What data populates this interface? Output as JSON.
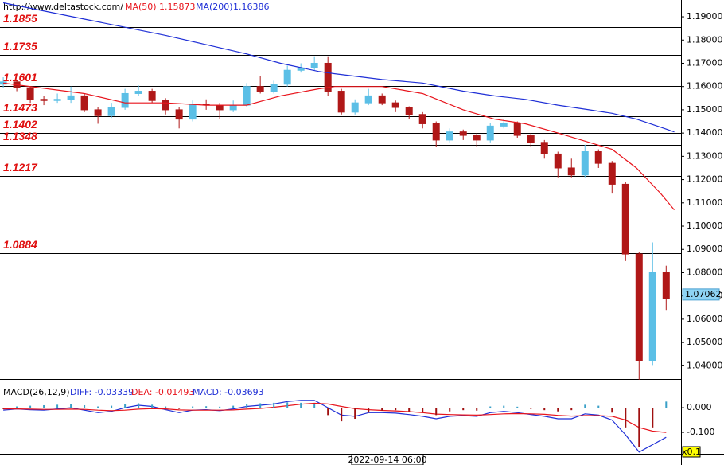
{
  "chart_data": [
    {
      "type": "candlestick",
      "source": "http://www.deltastock.com/",
      "open": [
        1.161,
        1.162,
        1.1595,
        1.1545,
        1.154,
        1.1545,
        1.156,
        1.15,
        1.1475,
        1.151,
        1.157,
        1.158,
        1.154,
        1.15,
        1.146,
        1.1525,
        1.152,
        1.15,
        1.152,
        1.16,
        1.158,
        1.161,
        1.167,
        1.168,
        1.17,
        1.158,
        1.149,
        1.153,
        1.156,
        1.153,
        1.151,
        1.148,
        1.144,
        1.137,
        1.1405,
        1.139,
        1.137,
        1.143,
        1.144,
        1.139,
        1.136,
        1.131,
        1.125,
        1.122,
        1.132,
        1.127,
        1.118,
        1.088,
        1.042,
        1.08
      ],
      "high": [
        1.164,
        1.163,
        1.16,
        1.156,
        1.157,
        1.16,
        1.157,
        1.151,
        1.153,
        1.159,
        1.1605,
        1.159,
        1.155,
        1.151,
        1.154,
        1.1545,
        1.153,
        1.154,
        1.1615,
        1.1645,
        1.1625,
        1.169,
        1.17,
        1.173,
        1.173,
        1.159,
        1.1545,
        1.159,
        1.157,
        1.154,
        1.1515,
        1.149,
        1.145,
        1.142,
        1.1415,
        1.14,
        1.1445,
        1.146,
        1.145,
        1.14,
        1.137,
        1.132,
        1.129,
        1.135,
        1.133,
        1.128,
        1.119,
        1.089,
        1.093,
        1.083
      ],
      "low": [
        1.1595,
        1.158,
        1.153,
        1.152,
        1.153,
        1.153,
        1.149,
        1.144,
        1.1465,
        1.15,
        1.156,
        1.153,
        1.148,
        1.142,
        1.145,
        1.15,
        1.146,
        1.149,
        1.151,
        1.157,
        1.157,
        1.16,
        1.166,
        1.167,
        1.156,
        1.148,
        1.148,
        1.152,
        1.152,
        1.149,
        1.146,
        1.142,
        1.134,
        1.136,
        1.137,
        1.134,
        1.136,
        1.142,
        1.138,
        1.134,
        1.129,
        1.121,
        1.121,
        1.121,
        1.125,
        1.114,
        1.085,
        1.034,
        1.04,
        1.064
      ],
      "close": [
        1.162,
        1.1595,
        1.1545,
        1.154,
        1.1545,
        1.156,
        1.15,
        1.1475,
        1.151,
        1.157,
        1.158,
        1.154,
        1.15,
        1.146,
        1.1525,
        1.152,
        1.15,
        1.152,
        1.16,
        1.158,
        1.161,
        1.167,
        1.168,
        1.17,
        1.158,
        1.149,
        1.153,
        1.156,
        1.153,
        1.151,
        1.148,
        1.144,
        1.137,
        1.1405,
        1.139,
        1.137,
        1.143,
        1.144,
        1.139,
        1.136,
        1.131,
        1.125,
        1.122,
        1.132,
        1.127,
        1.118,
        1.088,
        1.042,
        1.08,
        1.069
      ],
      "up_color": "#5bbfe6",
      "down_color": "#b01818",
      "xlim": [
        -0.24,
        50.1
      ],
      "ylim": [
        1.0343,
        1.1972
      ],
      "yticks": [
        {
          "value": 1.04,
          "label": "1.04000"
        },
        {
          "value": 1.05,
          "label": "1.05000"
        },
        {
          "value": 1.06,
          "label": "1.06000"
        },
        {
          "value": 1.07,
          "label": "1.07000"
        },
        {
          "value": 1.08,
          "label": "1.08000"
        },
        {
          "value": 1.09,
          "label": "1.09000"
        },
        {
          "value": 1.1,
          "label": "1.10000"
        },
        {
          "value": 1.11,
          "label": "1.11000"
        },
        {
          "value": 1.12,
          "label": "1.12000"
        },
        {
          "value": 1.13,
          "label": "1.13000"
        },
        {
          "value": 1.14,
          "label": "1.14000"
        },
        {
          "value": 1.15,
          "label": "1.15000"
        },
        {
          "value": 1.16,
          "label": "1.16000"
        },
        {
          "value": 1.17,
          "label": "1.17000"
        },
        {
          "value": 1.18,
          "label": "1.18000"
        },
        {
          "value": 1.19,
          "label": "1.19000"
        }
      ],
      "levels": [
        1.1855,
        1.1735,
        1.1601,
        1.1473,
        1.1402,
        1.1348,
        1.1217,
        1.0884
      ],
      "last_price": 1.07062,
      "lines": [
        {
          "name": "MA(50)",
          "last": 1.15873,
          "color": "#e8141c",
          "x": [
            0,
            6,
            9,
            12,
            15,
            18,
            20.5,
            23.3,
            24.5,
            28,
            31,
            34,
            36.3,
            38.6,
            41,
            43.3,
            45,
            46.8,
            48.6,
            49.6
          ],
          "values": [
            1.1615,
            1.157,
            1.153,
            1.153,
            1.152,
            1.152,
            1.156,
            1.159,
            1.16,
            1.16,
            1.157,
            1.15,
            1.146,
            1.144,
            1.14,
            1.136,
            1.133,
            1.125,
            1.114,
            1.107
          ]
        },
        {
          "name": "MA(200)",
          "last": 1.16386,
          "color": "#1f2fd6",
          "x": [
            0,
            6,
            9,
            12,
            15,
            18,
            20.5,
            23.3,
            24.5,
            28,
            31,
            34,
            36.3,
            38.6,
            41,
            43.3,
            45,
            46.8,
            48.6,
            49.6
          ],
          "values": [
            1.196,
            1.189,
            1.1855,
            1.182,
            1.178,
            1.174,
            1.17,
            1.1665,
            1.1655,
            1.163,
            1.1615,
            1.158,
            1.156,
            1.1545,
            1.152,
            1.15,
            1.1485,
            1.146,
            1.1425,
            1.1405
          ]
        }
      ]
    },
    {
      "type": "macd",
      "title": "MACD(26,12,9)",
      "date_label": "2022-09-14 06:00",
      "scale_label": "x0.1",
      "xlim": [
        -0.24,
        50.1
      ],
      "ylim": [
        -0.187,
        0.11
      ],
      "yticks": [
        {
          "value": 0,
          "label": "0.000"
        },
        {
          "value": -0.1,
          "label": "-0.100"
        }
      ],
      "series": [
        {
          "name": "DIFF: -0.03339",
          "kind": "line",
          "color": "#1f2fd6",
          "values": [
            -0.01,
            -0.005,
            -0.008,
            -0.01,
            -0.005,
            0.0,
            -0.01,
            -0.02,
            -0.015,
            0.0,
            0.01,
            0.005,
            -0.008,
            -0.02,
            -0.01,
            -0.008,
            -0.012,
            -0.005,
            0.005,
            0.01,
            0.015,
            0.025,
            0.03,
            0.03,
            0.0,
            -0.03,
            -0.035,
            -0.02,
            -0.02,
            -0.022,
            -0.028,
            -0.035,
            -0.045,
            -0.035,
            -0.032,
            -0.035,
            -0.02,
            -0.015,
            -0.02,
            -0.028,
            -0.035,
            -0.045,
            -0.045,
            -0.025,
            -0.03,
            -0.05,
            -0.11,
            -0.18,
            -0.15,
            -0.12
          ]
        },
        {
          "name": "DEA: -0.01493",
          "kind": "line",
          "color": "#e8141c",
          "values": [
            -0.005,
            -0.005,
            -0.006,
            -0.007,
            -0.007,
            -0.006,
            -0.007,
            -0.01,
            -0.012,
            -0.01,
            -0.006,
            -0.004,
            -0.005,
            -0.009,
            -0.01,
            -0.01,
            -0.01,
            -0.009,
            -0.006,
            -0.003,
            0.002,
            0.008,
            0.014,
            0.018,
            0.015,
            0.005,
            -0.004,
            -0.008,
            -0.011,
            -0.013,
            -0.016,
            -0.02,
            -0.026,
            -0.028,
            -0.029,
            -0.03,
            -0.028,
            -0.025,
            -0.024,
            -0.025,
            -0.027,
            -0.031,
            -0.034,
            -0.032,
            -0.032,
            -0.035,
            -0.05,
            -0.08,
            -0.095,
            -0.1
          ]
        },
        {
          "name": "MACD: -0.03693",
          "kind": "histogram",
          "color": "#1f2fd6",
          "up_color": "#3aa0c8",
          "down_color": "#a01010",
          "values": [
            -0.005,
            0.005,
            0.008,
            0.01,
            0.012,
            0.015,
            0.01,
            0.005,
            0.008,
            0.015,
            0.018,
            0.012,
            0.005,
            -0.005,
            0.005,
            0.006,
            0.004,
            0.008,
            0.015,
            0.018,
            0.02,
            0.022,
            0.02,
            0.015,
            -0.03,
            -0.055,
            -0.045,
            -0.02,
            -0.012,
            -0.01,
            -0.015,
            -0.02,
            -0.03,
            -0.015,
            -0.01,
            -0.012,
            0.005,
            0.008,
            0.004,
            -0.005,
            -0.01,
            -0.015,
            -0.01,
            0.012,
            0.008,
            -0.02,
            -0.08,
            -0.16,
            -0.08,
            0.025
          ]
        }
      ]
    }
  ]
}
